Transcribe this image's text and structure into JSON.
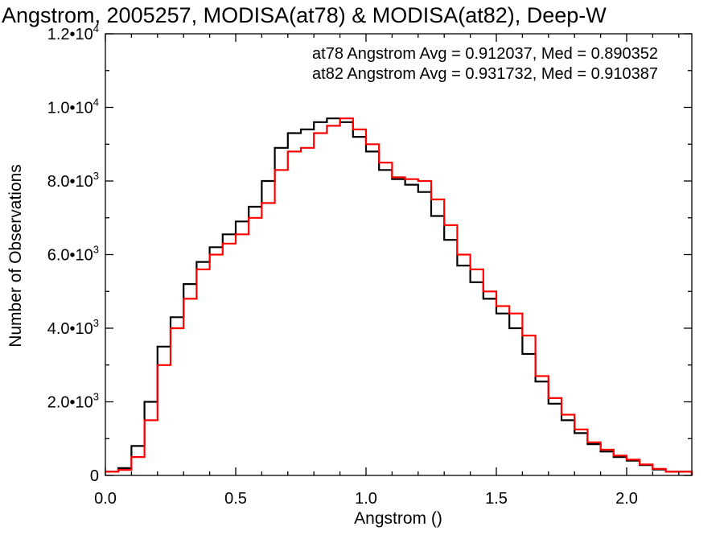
{
  "chart_data": {
    "type": "line",
    "style": "histogram-step",
    "title": "Angstrom, 2005257, MODISA(at78) & MODISA(at82), Deep-W",
    "xlabel": "Angstrom ()",
    "ylabel": "Number of Observations",
    "xlim": [
      0,
      2.25
    ],
    "ylim": [
      0,
      12000
    ],
    "x_ticks": [
      {
        "value": 0.0,
        "label": "0.0"
      },
      {
        "value": 0.5,
        "label": "0.5"
      },
      {
        "value": 1.0,
        "label": "1.0"
      },
      {
        "value": 1.5,
        "label": "1.5"
      },
      {
        "value": 2.0,
        "label": "2.0"
      }
    ],
    "y_ticks": [
      {
        "value": 0,
        "mant": "0",
        "exp": ""
      },
      {
        "value": 2000,
        "mant": "2.0•10",
        "exp": "3"
      },
      {
        "value": 4000,
        "mant": "4.0•10",
        "exp": "3"
      },
      {
        "value": 6000,
        "mant": "6.0•10",
        "exp": "3"
      },
      {
        "value": 8000,
        "mant": "8.0•10",
        "exp": "3"
      },
      {
        "value": 10000,
        "mant": "1.0•10",
        "exp": "4"
      },
      {
        "value": 12000,
        "mant": "1.2•10",
        "exp": "4"
      }
    ],
    "grid": false,
    "legend_position": "top-right",
    "annotations": [
      {
        "text": "at78 Angstrom Avg = 0.912037, Med = 0.890352",
        "color": "#000000"
      },
      {
        "text": "at82 Angstrom Avg = 0.931732, Med = 0.910387",
        "color": "#ff0000"
      }
    ],
    "series": [
      {
        "color": "#000000",
        "x": [
          0.0,
          0.05,
          0.1,
          0.15,
          0.2,
          0.25,
          0.3,
          0.35,
          0.4,
          0.45,
          0.5,
          0.55,
          0.6,
          0.65,
          0.7,
          0.75,
          0.8,
          0.85,
          0.9,
          0.95,
          1.0,
          1.05,
          1.1,
          1.15,
          1.2,
          1.25,
          1.3,
          1.35,
          1.4,
          1.45,
          1.5,
          1.55,
          1.6,
          1.65,
          1.7,
          1.75,
          1.8,
          1.85,
          1.9,
          1.95,
          2.0,
          2.05,
          2.1,
          2.15,
          2.25
        ],
        "y": [
          100,
          200,
          800,
          2000,
          3500,
          4300,
          5200,
          5800,
          6200,
          6550,
          6900,
          7300,
          8000,
          8900,
          9300,
          9400,
          9600,
          9700,
          9600,
          9200,
          8800,
          8300,
          8050,
          7900,
          7700,
          7050,
          6400,
          5700,
          5250,
          4800,
          4400,
          4000,
          3300,
          2550,
          1950,
          1500,
          1150,
          850,
          650,
          500,
          400,
          280,
          160,
          100,
          0
        ]
      },
      {
        "color": "#ff0000",
        "x": [
          0.0,
          0.05,
          0.1,
          0.15,
          0.2,
          0.25,
          0.3,
          0.35,
          0.4,
          0.45,
          0.5,
          0.55,
          0.6,
          0.65,
          0.7,
          0.75,
          0.8,
          0.85,
          0.9,
          0.95,
          1.0,
          1.05,
          1.1,
          1.15,
          1.2,
          1.25,
          1.3,
          1.35,
          1.4,
          1.45,
          1.5,
          1.55,
          1.6,
          1.65,
          1.7,
          1.75,
          1.8,
          1.85,
          1.9,
          1.95,
          2.0,
          2.05,
          2.1,
          2.15,
          2.25
        ],
        "y": [
          100,
          150,
          500,
          1500,
          3000,
          4000,
          4800,
          5600,
          6000,
          6300,
          6550,
          7000,
          7400,
          8300,
          8800,
          8900,
          9300,
          9500,
          9700,
          9400,
          9000,
          8500,
          8100,
          8050,
          8000,
          7500,
          6800,
          6000,
          5600,
          5000,
          4600,
          4400,
          3800,
          2700,
          2100,
          1650,
          1250,
          900,
          700,
          540,
          430,
          300,
          180,
          100,
          0
        ]
      }
    ]
  }
}
